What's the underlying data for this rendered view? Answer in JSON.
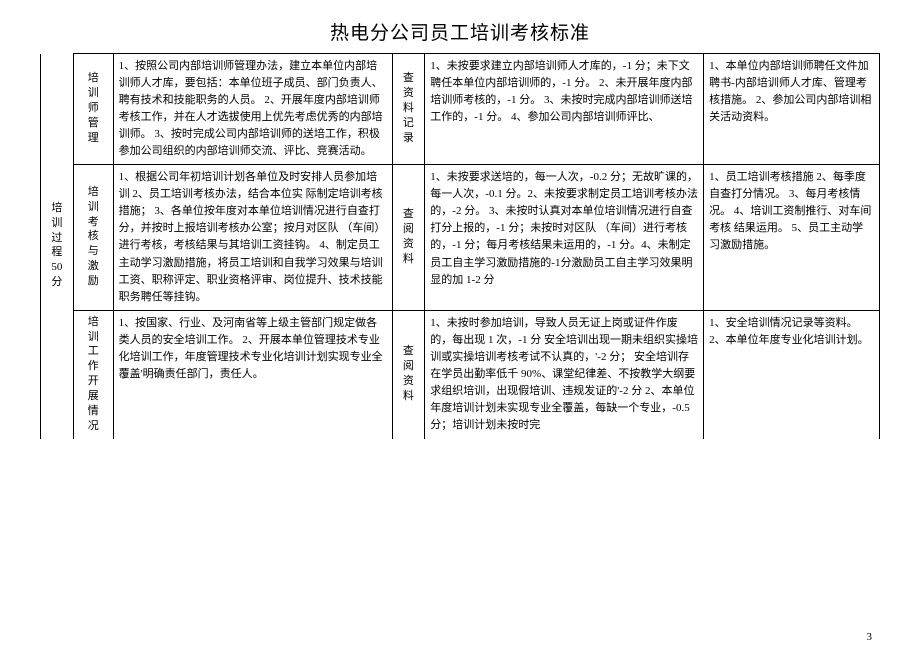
{
  "title": "热电分公司员工培训考核标准",
  "pageNumber": "3",
  "colGroup": "培训过程50分",
  "rows": [
    {
      "sub": "培训师管理",
      "c3": "1、按照公司内部培训师管理办法，建立本单位内部培训师人才库，要包括：本单位班子成员、部门负责人、聘有技术和技能职务的人员。\n2、开展年度内部培训师考核工作，并在人才选拔使用上优先考虑优秀的内部培训师。\n3、按时完成公司内部培训师的送培工作，积极参加公司组织的内部培训师交流、评比、竞赛活动。",
      "c4": "查资料记录",
      "c5": "1、未按要求建立内部培训师人才库的，-1 分；未下文聘任本单位内部培训师的，-1 分。\n2、未开展年度内部培训师考核的，-1 分。\n3、未按时完成内部培训师送培工作的，-1 分。\n4、参加公司内部培训师评比、",
      "c6": "1、本单位内部培训师聘任文件加聘书-内部培训师人才库、管理考核措施。\n2、参加公司内部培训相关活动资料。"
    },
    {
      "sub": "培训考核与激励",
      "c3": "1、根据公司年初培训计划各单位及时安排人员参加培训\n2、员工培训考核办法，结合本位实 际制定培训考核措施；\n 3、各单位按年度对本单位培训情况进行自查打分，并按时上报培训考核办公室；按月对区队 （车间）进行考核，考核结果与其培训工资挂钩。\n4、制定员工主动学习激励措施，将员工培训和自我学习效果与培训工资、职称评定、职业资格评审、岗位提升、技术技能职务聘任等挂钩。",
      "c4": "查阅资料",
      "c5": "1、未按要求送培的，每一人次，-0.2 分；无故旷课的，每一人次，-0.1 分。2、未按要求制定员工培训考核办法的，-2 分。 3、未按时认真对本单位培训情况进行自查打分上报的，-1 分；未按时对区队 （车间）进行考核的，-1 分；每月考核结果未运用的，-1 分。4、未制定员工自主学习激励措施的-1分激励员工自主学习效果明显的加 1-2 分",
      "c6": "1、员工培训考核措施\n2、每季度自查打分情况。\n 3、每月考核情况。 4、培训工资制推行、对车间考核 结果运用。\n 5、员工主动学习激励措施。"
    },
    {
      "sub": "培训工作开展情况",
      "c3": "1、按国家、行业、及河南省等上级主管部门规定做各类人员的安全培训工作。\n2、开展本单位管理技术专业化培训工作，年度管理技术专业化培训计划实现专业全覆盖'明确责任部门，责任人。",
      "c4": "查阅资料",
      "c5": "1、未按时参加培训，导致人员无证上岗或证件作废的，每出现 1 次，-1 分  安全培训出现一期未组织实操培训或实操培训考核考试不认真的，'-2 分；  安全培训存在学员出勤率低千 90%、课堂纪律差、不按教学大纲要求组织培训，出现假培训、违规发证的'-2 分\n2、本单位年度培训计划未实现专业全覆盖，每缺一个专业，-0.5 分；培训计划未按时完",
      "c6": "1、安全培训情况记录等资料。\n2、本单位年度专业化培训计划。"
    }
  ]
}
